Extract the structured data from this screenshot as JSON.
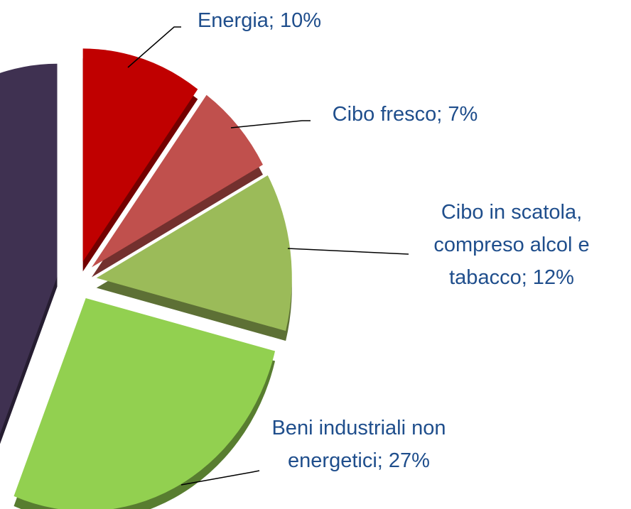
{
  "chart_data": {
    "type": "pie",
    "values": [
      10,
      7,
      12,
      27,
      44
    ],
    "value_labels": [
      "Energia; 10%",
      "Cibo fresco; 7%",
      "Cibo in scatola, compreso alcol e tabacco; 12%",
      "Beni industriali non energetici; 27%",
      null
    ],
    "colors": [
      "#c00000",
      "#c0504d",
      "#9bbb59",
      "#92d050",
      "#3f3151"
    ]
  }
}
